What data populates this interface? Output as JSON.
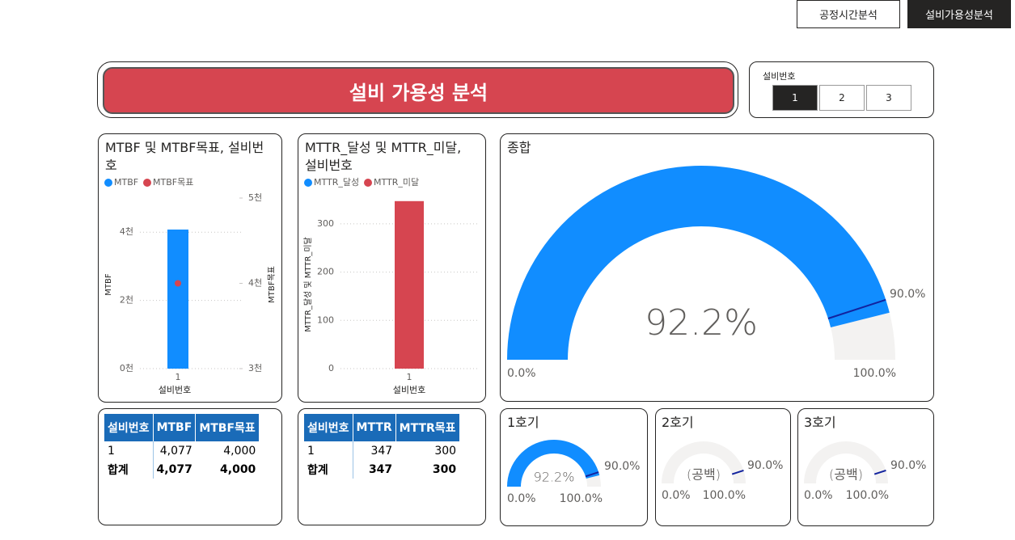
{
  "nav": {
    "buttons": [
      "공정시간분석",
      "설비가용성분석"
    ],
    "active": 1
  },
  "header": {
    "title": "설비 가용성 분석"
  },
  "slicer": {
    "label": "설비번호",
    "options": [
      "1",
      "2",
      "3"
    ],
    "selected": 0
  },
  "chart_data": [
    {
      "type": "bar",
      "title": "MTBF 및 MTBF목표, 설비번호",
      "categories": [
        "1"
      ],
      "series": [
        {
          "name": "MTBF",
          "color": "#118dff",
          "type": "bar",
          "axis": "y",
          "values": [
            4077
          ]
        },
        {
          "name": "MTBF목표",
          "color": "#d64550",
          "type": "point",
          "axis": "y2",
          "values": [
            4000
          ]
        }
      ],
      "ylim": [
        0,
        5000
      ],
      "yticks": [
        {
          "value": 0,
          "label": "0천"
        },
        {
          "value": 2000,
          "label": "2천"
        },
        {
          "value": 4000,
          "label": "4천"
        }
      ],
      "y2lim": [
        3000,
        5000
      ],
      "y2ticks": [
        {
          "value": 3000,
          "label": "3천"
        },
        {
          "value": 4000,
          "label": "4천"
        },
        {
          "value": 5000,
          "label": "5천"
        }
      ],
      "xlabel": "설비번호",
      "ylabel": "MTBF",
      "y2label": "MTBF목표",
      "grid": true
    },
    {
      "type": "bar",
      "title": "MTTR_달성 및 MTTR_미달, 설비번호",
      "categories": [
        "1"
      ],
      "series": [
        {
          "name": "MTTR_달성",
          "color": "#118dff",
          "type": "bar",
          "axis": "y",
          "values": [
            null
          ]
        },
        {
          "name": "MTTR_미달",
          "color": "#d64550",
          "type": "bar",
          "axis": "y",
          "values": [
            347
          ]
        }
      ],
      "ylim": [
        0,
        350
      ],
      "yticks": [
        0,
        100,
        200,
        300
      ],
      "xlabel": "설비번호",
      "ylabel": "MTTR_달성 및 MTTR_미달",
      "grid": true
    },
    {
      "type": "gauge",
      "title": "종합",
      "value": 92.2,
      "value_label": "92.2%",
      "range": [
        0,
        100
      ],
      "range_labels": [
        "0.0%",
        "100.0%"
      ],
      "target": 90,
      "target_label": "90.0%",
      "color": "#118dff"
    },
    {
      "type": "gauge",
      "title": "1호기",
      "value": 92.2,
      "value_label": "92.2%",
      "range": [
        0,
        100
      ],
      "range_labels": [
        "0.0%",
        "100.0%"
      ],
      "target": 90,
      "target_label": "90.0%",
      "color": "#118dff"
    },
    {
      "type": "gauge",
      "title": "2호기",
      "value": null,
      "value_label": "(공백)",
      "range": [
        0,
        100
      ],
      "range_labels": [
        "0.0%",
        "100.0%"
      ],
      "target": 90,
      "target_label": "90.0%",
      "color": "#118dff"
    },
    {
      "type": "gauge",
      "title": "3호기",
      "value": null,
      "value_label": "(공백)",
      "range": [
        0,
        100
      ],
      "range_labels": [
        "0.0%",
        "100.0%"
      ],
      "target": 90,
      "target_label": "90.0%",
      "color": "#118dff"
    }
  ],
  "tables": [
    {
      "columns": [
        "설비번호",
        "MTBF",
        "MTBF목표"
      ],
      "rows": [
        [
          "1",
          "4,077",
          "4,000"
        ]
      ],
      "total": [
        "합계",
        "4,077",
        "4,000"
      ]
    },
    {
      "columns": [
        "설비번호",
        "MTTR",
        "MTTR목표"
      ],
      "rows": [
        [
          "1",
          "347",
          "300"
        ]
      ],
      "total": [
        "합계",
        "347",
        "300"
      ]
    }
  ]
}
